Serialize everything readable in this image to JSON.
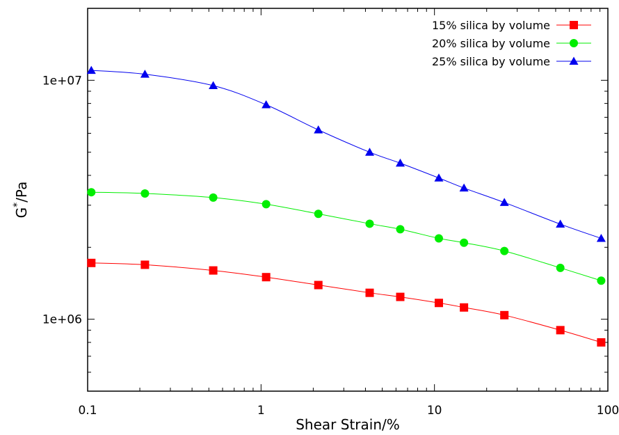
{
  "chart_data": {
    "type": "scatter",
    "x_scale": "log",
    "y_scale": "log",
    "xlim": [
      0.1,
      100
    ],
    "ylim": [
      500000,
      20000000
    ],
    "xlabel": "Shear Strain/%",
    "ylabel_base": "G",
    "ylabel_sup": "*",
    "ylabel_tail": "/Pa",
    "x_ticks": [
      {
        "value": 0.1,
        "label": "0.1"
      },
      {
        "value": 1,
        "label": "1"
      },
      {
        "value": 10,
        "label": "10"
      },
      {
        "value": 100,
        "label": "100"
      }
    ],
    "y_ticks": [
      {
        "value": 1000000,
        "label": "1e+06"
      },
      {
        "value": 10000000,
        "label": "1e+07"
      }
    ],
    "grid": false,
    "legend_position": "top-right",
    "series": [
      {
        "name": "15% silica by volume",
        "color": "#ff0000",
        "marker": "square",
        "x": [
          0.105,
          0.214,
          0.53,
          1.07,
          2.14,
          4.23,
          6.35,
          10.6,
          14.8,
          25.3,
          53.2,
          91.5
        ],
        "y": [
          1720000,
          1690000,
          1600000,
          1500000,
          1390000,
          1290000,
          1240000,
          1170000,
          1120000,
          1040000,
          900000,
          800000
        ]
      },
      {
        "name": "20% silica by volume",
        "color": "#00ee00",
        "marker": "circle",
        "x": [
          0.105,
          0.214,
          0.53,
          1.07,
          2.14,
          4.23,
          6.35,
          10.6,
          14.8,
          25.3,
          53.2,
          91.5
        ],
        "y": [
          3400000,
          3360000,
          3230000,
          3030000,
          2760000,
          2510000,
          2380000,
          2180000,
          2090000,
          1930000,
          1640000,
          1450000
        ]
      },
      {
        "name": "25% silica by volume",
        "color": "#0000ee",
        "marker": "triangle",
        "x": [
          0.105,
          0.214,
          0.53,
          1.07,
          2.14,
          4.23,
          6.35,
          10.6,
          14.8,
          25.3,
          53.2,
          91.5
        ],
        "y": [
          11000000,
          10600000,
          9500000,
          7900000,
          6200000,
          5000000,
          4500000,
          3900000,
          3540000,
          3080000,
          2500000,
          2180000
        ]
      }
    ]
  }
}
